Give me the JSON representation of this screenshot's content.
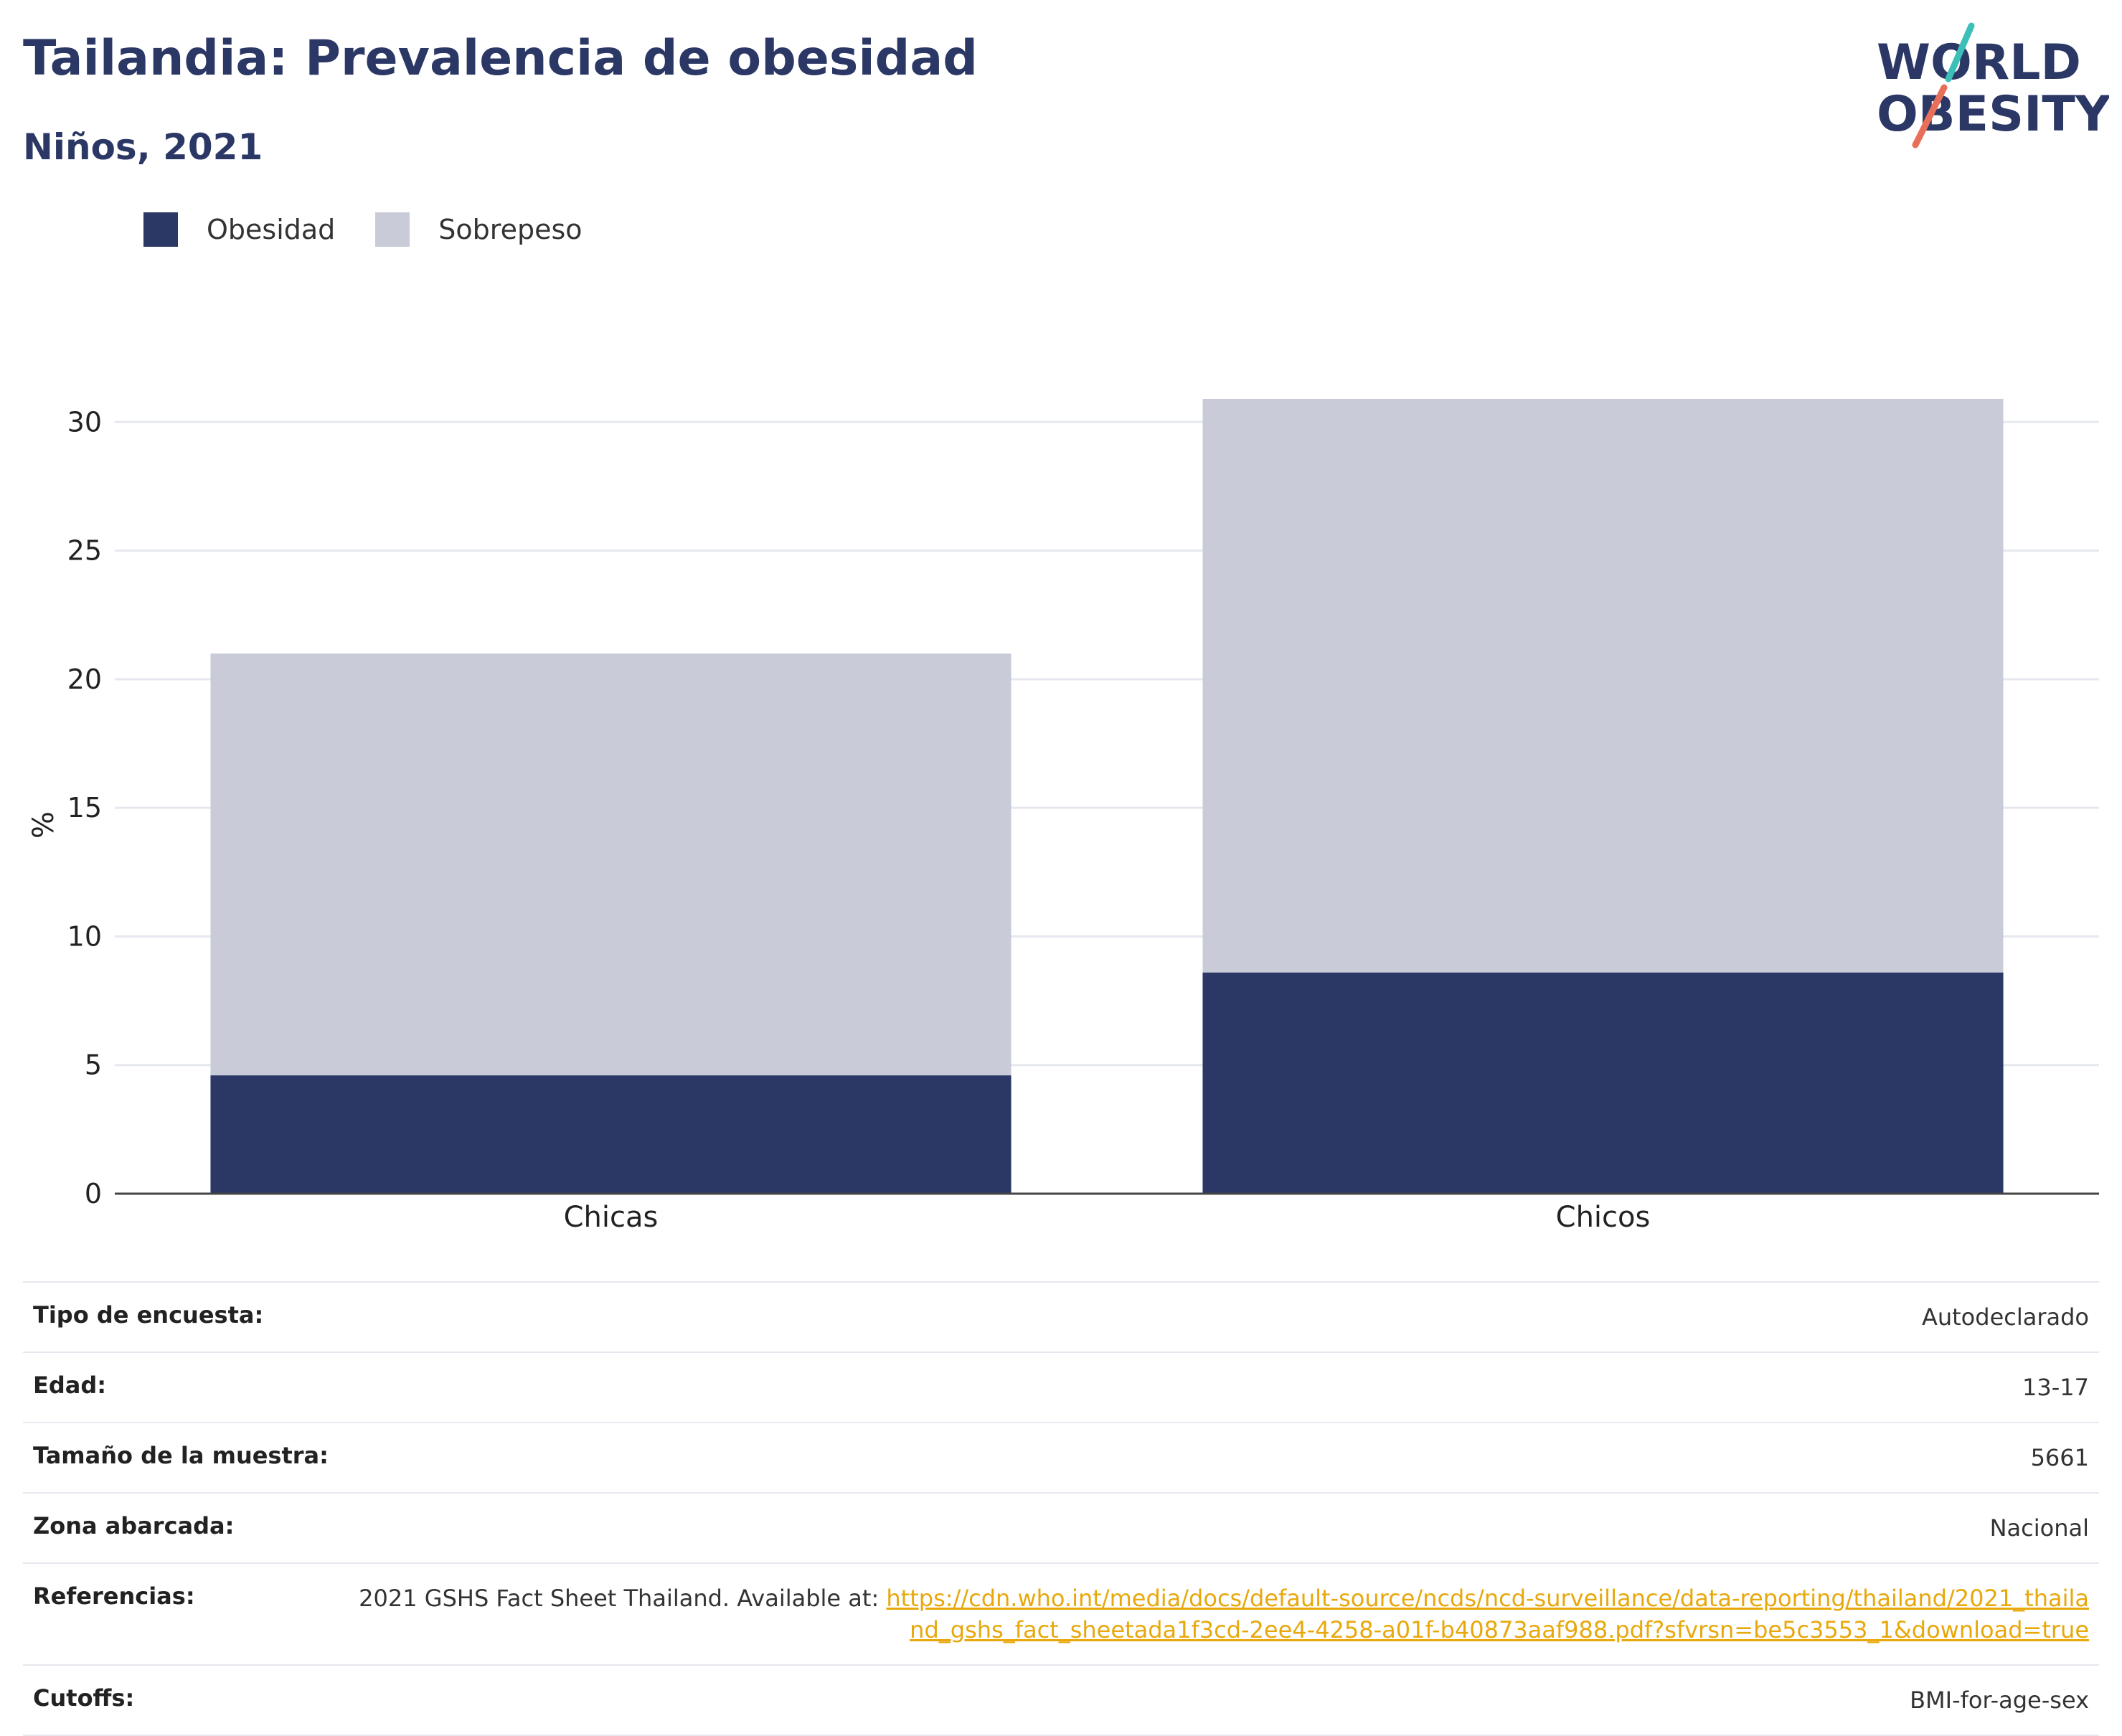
{
  "header": {
    "title": "Tailandia: Prevalencia de obesidad",
    "subtitle": "Niños, 2021"
  },
  "logo": {
    "line1": "WORLD",
    "line2": "OBESITY",
    "text_color": "#2b3765",
    "slash_colors": [
      "#3bbfb8",
      "#e8705a"
    ]
  },
  "legend": {
    "items": [
      {
        "label": "Obesidad",
        "color": "#2b3765"
      },
      {
        "label": "Sobrepeso",
        "color": "#c9ccd8"
      }
    ]
  },
  "chart_data": {
    "type": "bar",
    "stacked": true,
    "categories": [
      "Chicas",
      "Chicos"
    ],
    "series": [
      {
        "name": "Obesidad",
        "color": "#2b3765",
        "values": [
          4.6,
          8.6
        ]
      },
      {
        "name": "Sobrepeso",
        "color": "#c9ccd8",
        "values": [
          16.4,
          22.3
        ]
      }
    ],
    "ylabel": "%",
    "ylim": [
      0,
      30.9
    ],
    "yticks": [
      0,
      5,
      10,
      15,
      20,
      25,
      30
    ],
    "grid": true,
    "legend_position": "top-left"
  },
  "info": {
    "rows": [
      {
        "key": "Tipo de encuesta:",
        "value": "Autodeclarado"
      },
      {
        "key": "Edad:",
        "value": "13-17"
      },
      {
        "key": "Tamaño de la muestra:",
        "value": "5661"
      },
      {
        "key": "Zona abarcada:",
        "value": "Nacional"
      }
    ],
    "references": {
      "key": "Referencias:",
      "text": "2021 GSHS Fact Sheet Thailand. Available at: ",
      "link": "https://cdn.who.int/media/docs/default-source/ncds/ncd-surveillance/data-reporting/thailand/2021_thailand_gshs_fact_sheetada1f3cd-2ee4-4258-a01f-b40873aaf988.pdf?sfvrsn=be5c3553_1&download=true"
    },
    "cutoffs": {
      "key": "Cutoffs:",
      "value": "BMI-for-age-sex"
    }
  }
}
